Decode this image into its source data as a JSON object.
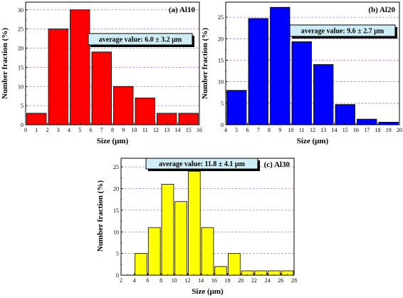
{
  "chart_data": [
    {
      "type": "bar",
      "panel_label": "(a) Al10",
      "annotation": "average value: 6.0 ± 3.2 μm",
      "xlabel": "Size (μm)",
      "ylabel": "Number fraction (%)",
      "xlim": [
        0,
        16
      ],
      "ylim": [
        0,
        32
      ],
      "xticks": [
        0,
        1,
        2,
        3,
        4,
        5,
        6,
        7,
        8,
        9,
        10,
        11,
        12,
        13,
        14,
        15,
        16
      ],
      "yticks": [
        0,
        5,
        10,
        15,
        20,
        25,
        30
      ],
      "bar_color": "#ff0000",
      "bar_width": 1.8,
      "x": [
        1,
        3,
        5,
        7,
        9,
        11,
        13,
        15
      ],
      "values": [
        3,
        25,
        30,
        19,
        10,
        7,
        3,
        3
      ],
      "grid": true
    },
    {
      "type": "bar",
      "panel_label": "(b) Al20",
      "annotation": "average value: 9.6 ± 2.7 μm",
      "xlabel": "Size (μm)",
      "ylabel": "Number fraction (%)",
      "xlim": [
        4,
        20
      ],
      "ylim": [
        0,
        28.5
      ],
      "xticks": [
        4,
        5,
        6,
        7,
        8,
        9,
        10,
        11,
        12,
        13,
        14,
        15,
        16,
        17,
        18,
        19,
        20
      ],
      "yticks": [
        0,
        5,
        10,
        15,
        20,
        25
      ],
      "bar_color": "#0000ff",
      "bar_width": 1.8,
      "x": [
        5,
        7,
        9,
        11,
        13,
        15,
        17,
        19
      ],
      "values": [
        8,
        24.7,
        27.3,
        19.3,
        14,
        4.7,
        1.3,
        0.6
      ],
      "grid": true
    },
    {
      "type": "bar",
      "panel_label": "(c) Al30",
      "annotation": "average value: 11.8 ± 4.1 μm",
      "xlabel": "Size (μm)",
      "ylabel": "Number fraction (%)",
      "xlim": [
        2,
        28
      ],
      "ylim": [
        0,
        27
      ],
      "xticks": [
        2,
        4,
        6,
        8,
        10,
        12,
        14,
        16,
        18,
        20,
        22,
        24,
        26,
        28
      ],
      "yticks": [
        0,
        5,
        10,
        15,
        20,
        25
      ],
      "bar_color": "#ffff00",
      "bar_width": 1.8,
      "x": [
        5,
        7,
        9,
        11,
        13,
        15,
        17,
        19,
        21,
        23,
        25,
        27
      ],
      "values": [
        5,
        11,
        21,
        17,
        24,
        11,
        2,
        5,
        1,
        1,
        1,
        1
      ],
      "grid": true
    }
  ]
}
